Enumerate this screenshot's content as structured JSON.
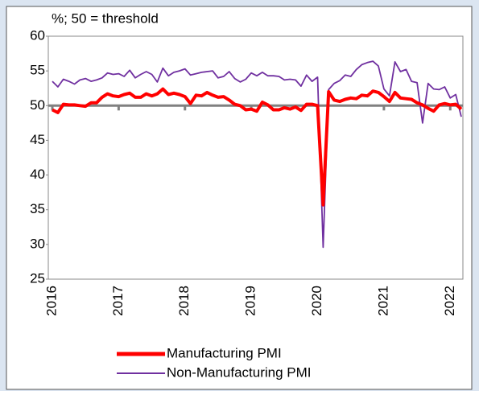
{
  "chart_data": {
    "type": "line",
    "title": "%; 50 = threshold",
    "categories": [
      "2016",
      null,
      null,
      null,
      null,
      null,
      null,
      null,
      null,
      null,
      null,
      null,
      "2017",
      null,
      null,
      null,
      null,
      null,
      null,
      null,
      null,
      null,
      null,
      null,
      "2018",
      null,
      null,
      null,
      null,
      null,
      null,
      null,
      null,
      null,
      null,
      null,
      "2019",
      null,
      null,
      null,
      null,
      null,
      null,
      null,
      null,
      null,
      null,
      null,
      "2020",
      null,
      null,
      null,
      null,
      null,
      null,
      null,
      null,
      null,
      null,
      null,
      "2021",
      null,
      null,
      null,
      null,
      null,
      null,
      null,
      null,
      null,
      null,
      null,
      "2022",
      null,
      null
    ],
    "series": [
      {
        "name": "Manufacturing PMI",
        "color": "#ff0000",
        "values": [
          49.4,
          49.0,
          50.2,
          50.1,
          50.1,
          50.0,
          49.9,
          50.4,
          50.4,
          51.2,
          51.7,
          51.4,
          51.3,
          51.6,
          51.8,
          51.2,
          51.2,
          51.7,
          51.4,
          51.7,
          52.4,
          51.6,
          51.8,
          51.6,
          51.3,
          50.3,
          51.5,
          51.4,
          51.9,
          51.5,
          51.2,
          51.3,
          50.8,
          50.2,
          50.0,
          49.4,
          49.5,
          49.2,
          50.5,
          50.1,
          49.4,
          49.4,
          49.7,
          49.5,
          49.8,
          49.3,
          50.2,
          50.2,
          50.0,
          35.7,
          52.0,
          50.8,
          50.6,
          50.9,
          51.1,
          51.0,
          51.5,
          51.4,
          52.1,
          51.9,
          51.3,
          50.6,
          51.9,
          51.1,
          51.0,
          50.9,
          50.4,
          50.1,
          49.6,
          49.2,
          50.1,
          50.3,
          50.1,
          50.2,
          49.5
        ]
      },
      {
        "name": "Non-Manufacturing PMI",
        "color": "#7030a0",
        "values": [
          53.5,
          52.7,
          53.8,
          53.5,
          53.1,
          53.7,
          53.9,
          53.5,
          53.7,
          54.0,
          54.7,
          54.5,
          54.6,
          54.2,
          55.1,
          54.0,
          54.5,
          54.9,
          54.5,
          53.4,
          55.4,
          54.3,
          54.8,
          55.0,
          55.3,
          54.4,
          54.6,
          54.8,
          54.9,
          55.0,
          54.0,
          54.2,
          54.9,
          53.9,
          53.4,
          53.8,
          54.7,
          54.3,
          54.8,
          54.3,
          54.3,
          54.2,
          53.7,
          53.8,
          53.7,
          52.8,
          54.4,
          53.5,
          54.1,
          29.6,
          52.3,
          53.2,
          53.6,
          54.4,
          54.2,
          55.2,
          55.9,
          56.2,
          56.4,
          55.7,
          52.4,
          51.4,
          56.3,
          54.9,
          55.2,
          53.5,
          53.3,
          47.5,
          53.2,
          52.4,
          52.3,
          52.7,
          51.1,
          51.6,
          48.4
        ]
      }
    ],
    "ylim": [
      25,
      60
    ],
    "yticks": [
      25,
      30,
      35,
      40,
      45,
      50,
      55,
      60
    ],
    "threshold": 50,
    "legend": "bottom"
  }
}
